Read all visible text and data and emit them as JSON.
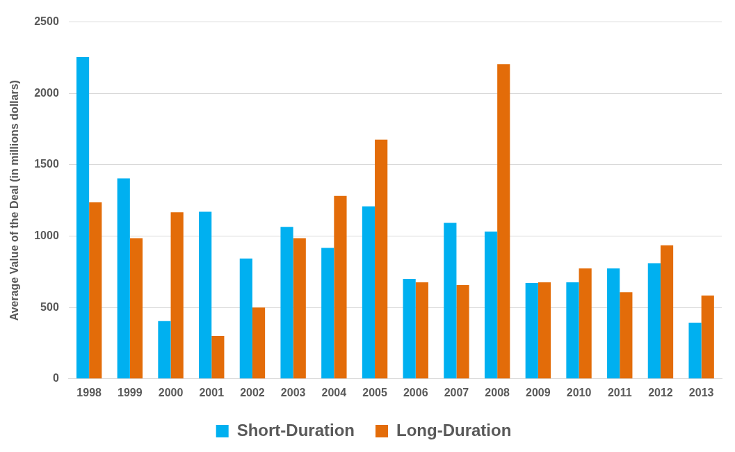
{
  "chart_data": {
    "type": "bar",
    "ylabel": "Average Value of the Deal (in millions dollars)",
    "categories": [
      "1998",
      "1999",
      "2000",
      "2001",
      "2002",
      "2003",
      "2004",
      "2005",
      "2006",
      "2007",
      "2008",
      "2009",
      "2010",
      "2011",
      "2012",
      "2013"
    ],
    "series": [
      {
        "name": "Short-Duration",
        "color": "#00b0f0",
        "values": [
          2255,
          1405,
          405,
          1170,
          843,
          1065,
          917,
          1208,
          700,
          1093,
          1032,
          671,
          676,
          773,
          810,
          394
        ]
      },
      {
        "name": "Long-Duration",
        "color": "#e36c09",
        "values": [
          1236,
          986,
          1167,
          301,
          500,
          986,
          1282,
          1676,
          676,
          657,
          2204,
          676,
          773,
          607,
          935,
          583
        ]
      }
    ],
    "ylim": [
      0,
      2500
    ],
    "yticks": [
      0,
      500,
      1000,
      1500,
      2000,
      2500
    ],
    "grid": "y",
    "legend": "bottom"
  }
}
